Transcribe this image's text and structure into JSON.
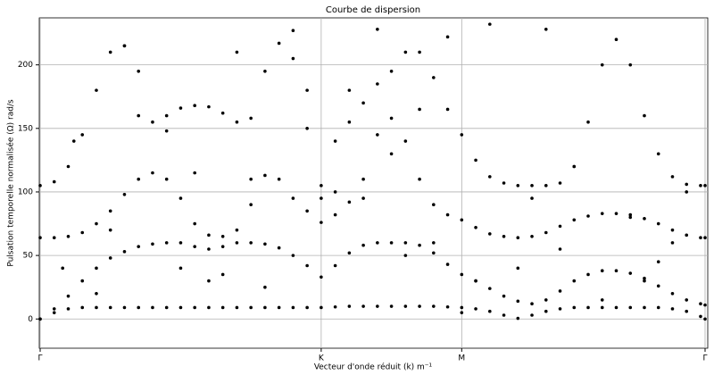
{
  "chart_data": {
    "type": "scatter",
    "title": "Courbe de dispersion",
    "x_label": "Vecteur d'onde réduit (k) m⁻¹",
    "y_label": "Pulsation temporelle normalisée (Ω) rad/s",
    "xlim": [
      0,
      2.366
    ],
    "ylim": [
      -23,
      237
    ],
    "xticks": [
      {
        "value": 0,
        "label": "Γ"
      },
      {
        "value": 1,
        "label": "K"
      },
      {
        "value": 1.5,
        "label": "M"
      },
      {
        "value": 2.366,
        "label": "Γ"
      }
    ],
    "yticks": [
      0,
      50,
      100,
      150,
      200
    ],
    "grid": true,
    "x": [
      0,
      0.05,
      0.1,
      0.15,
      0.2,
      0.25,
      0.3,
      0.35,
      0.4,
      0.45,
      0.5,
      0.55,
      0.6,
      0.65,
      0.7,
      0.75,
      0.8,
      0.85,
      0.9,
      0.95,
      1.0,
      1.05,
      1.1,
      1.15,
      1.2,
      1.25,
      1.3,
      1.35,
      1.4,
      1.45,
      1.5,
      1.55,
      1.6,
      1.65,
      1.7,
      1.75,
      1.8,
      1.85,
      1.9,
      1.95,
      2.0,
      2.05,
      2.1,
      2.15,
      2.2,
      2.25,
      2.3,
      2.35,
      2.366
    ],
    "series": [
      {
        "color": "#000000",
        "values": [
          0,
          5,
          8,
          9,
          9,
          9,
          9,
          9,
          9,
          9,
          9,
          9,
          9,
          9,
          9,
          9,
          9,
          9,
          9,
          9,
          9,
          9.5,
          10,
          10,
          10,
          10,
          10,
          10,
          10,
          9.5,
          9,
          8,
          6,
          3,
          0.5,
          3,
          6,
          8,
          9,
          9,
          9,
          9,
          9,
          9,
          9,
          8,
          6,
          2,
          0
        ]
      },
      {
        "color": "#000000",
        "values": [
          0,
          8,
          18,
          30,
          40,
          48,
          53,
          57,
          59,
          60,
          60,
          57,
          55,
          57,
          60,
          60,
          59,
          56,
          50,
          42,
          33,
          42,
          52,
          58,
          60,
          60,
          60,
          58,
          52,
          43,
          35,
          30,
          24,
          18,
          14,
          12,
          15,
          22,
          30,
          35,
          38,
          38,
          36,
          32,
          26,
          20,
          15,
          12,
          11
        ]
      },
      {
        "color": "#000000",
        "values": [
          64,
          64,
          65,
          68,
          75,
          85,
          98,
          110,
          115,
          110,
          95,
          75,
          66,
          65,
          70,
          90,
          113,
          110,
          95,
          85,
          76,
          82,
          92,
          110,
          145,
          158,
          140,
          110,
          90,
          82,
          78,
          72,
          67,
          65,
          64,
          65,
          68,
          73,
          78,
          81,
          83,
          83,
          82,
          79,
          75,
          70,
          66,
          64,
          64
        ]
      },
      {
        "color": "#000000",
        "values": [
          105,
          108,
          120,
          145,
          180,
          210,
          215,
          160,
          155,
          160,
          166,
          168,
          167,
          162,
          155,
          158,
          195,
          217,
          205,
          150,
          105,
          140,
          155,
          170,
          185,
          195,
          210,
          210,
          190,
          165,
          145,
          125,
          112,
          107,
          105,
          105,
          105,
          107,
          120,
          155,
          200,
          220,
          200,
          160,
          130,
          112,
          106,
          105,
          105
        ]
      },
      {
        "color": "#000000",
        "x": [
          0.3,
          0.12,
          0.45,
          0.6,
          0.7,
          0.9,
          1.1,
          1.2,
          1.35,
          1.45,
          1.6,
          1.8,
          1.9,
          2.1,
          2.2,
          0.2,
          0.5,
          0.8,
          1.05,
          1.25,
          1.4,
          1.7,
          2.0,
          2.3,
          0.35,
          0.65,
          0.95,
          1.15,
          1.55,
          1.85,
          0.08,
          0.55,
          1.3,
          1.75,
          2.15,
          0.25,
          0.75,
          1.0,
          1.5,
          2.25
        ],
        "values": [
          215,
          140,
          148,
          30,
          210,
          227,
          180,
          228,
          165,
          222,
          232,
          228,
          120,
          80,
          45,
          20,
          40,
          25,
          100,
          130,
          60,
          40,
          15,
          100,
          195,
          35,
          180,
          95,
          30,
          55,
          40,
          115,
          50,
          95,
          30,
          70,
          110,
          95,
          5,
          60
        ]
      }
    ]
  }
}
